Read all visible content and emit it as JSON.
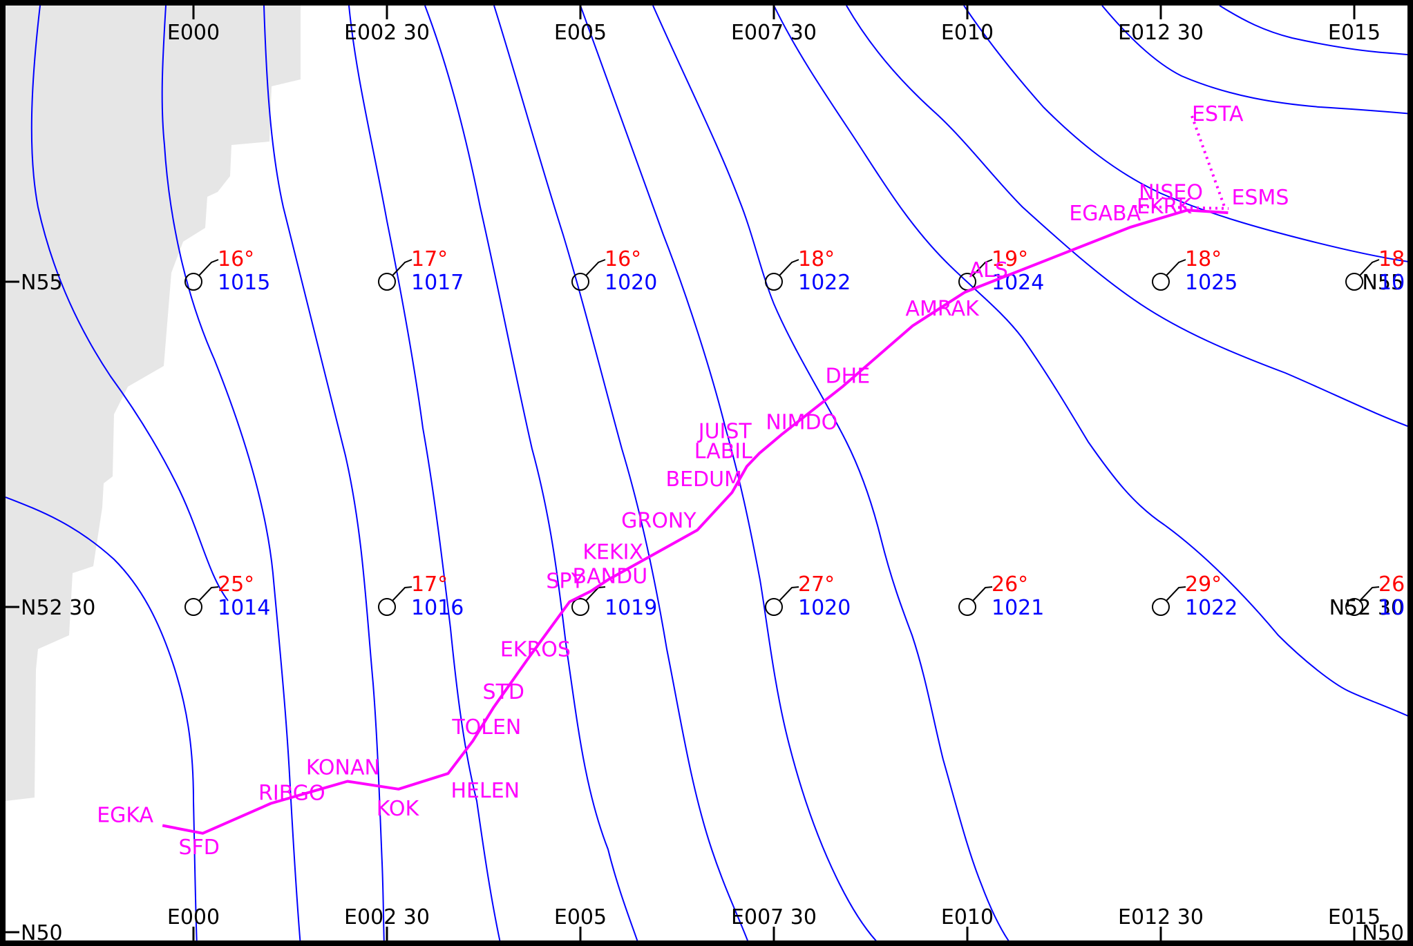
{
  "colors": {
    "land": "#e6e6e6",
    "isobar": "#0000ff",
    "route": "#ff00ff",
    "temperature": "#ff0000",
    "pressure": "#0000ff",
    "grid_text": "#000000",
    "frame": "#000000"
  },
  "grid": {
    "longitudes": [
      "E000",
      "E002 30",
      "E005",
      "E007 30",
      "E010",
      "E012 30",
      "E015"
    ],
    "latitudes": [
      "N55",
      "N52 30",
      "N50"
    ]
  },
  "stations": [
    {
      "lon": 0,
      "lat": 55,
      "temp": "16°",
      "pressure": "1015",
      "wind": "barb"
    },
    {
      "lon": 2.5,
      "lat": 55,
      "temp": "17°",
      "pressure": "1017",
      "wind": "barb"
    },
    {
      "lon": 5,
      "lat": 55,
      "temp": "16°",
      "pressure": "1020",
      "wind": "barb"
    },
    {
      "lon": 7.5,
      "lat": 55,
      "temp": "18°",
      "pressure": "1022",
      "wind": "barb"
    },
    {
      "lon": 10,
      "lat": 55,
      "temp": "19°",
      "pressure": "1024",
      "wind": "barb"
    },
    {
      "lon": 12.5,
      "lat": 55,
      "temp": "18°",
      "pressure": "1025",
      "wind": "barb"
    },
    {
      "lon": 15,
      "lat": 55,
      "temp": "18",
      "pressure": "10",
      "wind": "barb"
    },
    {
      "lon": 0,
      "lat": 52.5,
      "temp": "25°",
      "pressure": "1014",
      "wind": "barb"
    },
    {
      "lon": 2.5,
      "lat": 52.5,
      "temp": "17°",
      "pressure": "1016",
      "wind": "barb"
    },
    {
      "lon": 5,
      "lat": 52.5,
      "temp": "",
      "pressure": "1019",
      "wind": "barb"
    },
    {
      "lon": 7.5,
      "lat": 52.5,
      "temp": "27°",
      "pressure": "1020",
      "wind": "barb"
    },
    {
      "lon": 10,
      "lat": 52.5,
      "temp": "26°",
      "pressure": "1021",
      "wind": "barb"
    },
    {
      "lon": 12.5,
      "lat": 52.5,
      "temp": "29°",
      "pressure": "1022",
      "wind": "barb"
    },
    {
      "lon": 15,
      "lat": 52.5,
      "temp": "26",
      "pressure": "10",
      "wind": "barb"
    }
  ],
  "route": {
    "waypoints": [
      {
        "name": "EGKA",
        "lon": -0.4,
        "lat": 50.82
      },
      {
        "name": "SFD",
        "lon": 0.12,
        "lat": 50.76
      },
      {
        "name": "RIBGO",
        "lon": 1.0,
        "lat": 50.99
      },
      {
        "name": "KONAN",
        "lon": 1.99,
        "lat": 51.16
      },
      {
        "name": "KOK",
        "lon": 2.65,
        "lat": 51.1
      },
      {
        "name": "HELEN",
        "lon": 3.29,
        "lat": 51.22
      },
      {
        "name": "TOLEN",
        "lon": 3.61,
        "lat": 51.47
      },
      {
        "name": "STD",
        "lon": 3.88,
        "lat": 51.73
      },
      {
        "name": "EKROS",
        "lon": 4.32,
        "lat": 52.1
      },
      {
        "name": "SPY",
        "lon": 4.86,
        "lat": 52.54
      },
      {
        "name": "BANDU",
        "lon": 5.13,
        "lat": 52.62
      },
      {
        "name": "KEKIX",
        "lon": 5.36,
        "lat": 52.71
      },
      {
        "name": "GRONY",
        "lon": 6.51,
        "lat": 53.09
      },
      {
        "name": "BEDUM",
        "lon": 6.96,
        "lat": 53.38
      },
      {
        "name": "LABIL",
        "lon": 7.15,
        "lat": 53.58
      },
      {
        "name": "JUIST",
        "lon": 7.31,
        "lat": 53.68
      },
      {
        "name": "NIMDO",
        "lon": 7.61,
        "lat": 53.83
      },
      {
        "name": "DHE",
        "lon": 8.38,
        "lat": 54.19
      },
      {
        "name": "AMRAK",
        "lon": 9.29,
        "lat": 54.66
      },
      {
        "name": "ALS",
        "lon": 9.97,
        "lat": 54.92
      },
      {
        "name": "EGABA",
        "lon": 12.11,
        "lat": 55.42
      },
      {
        "name": "NISEO",
        "lon": 12.84,
        "lat": 55.55
      },
      {
        "name": "ESMS",
        "lon": 13.37,
        "lat": 55.53
      }
    ],
    "approach_labels": [
      "EKRK",
      "ESTA"
    ]
  }
}
